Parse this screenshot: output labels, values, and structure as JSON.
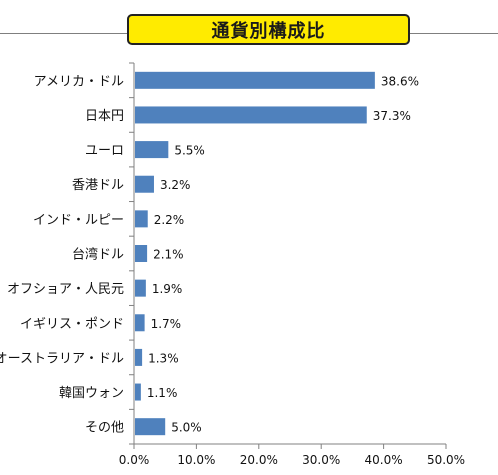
{
  "chart_data": {
    "type": "bar",
    "orientation": "horizontal",
    "title": "通貨別構成比",
    "categories": [
      "アメリカ・ドル",
      "日本円",
      "ユーロ",
      "香港ドル",
      "インド・ルピー",
      "台湾ドル",
      "オフショア・人民元",
      "イギリス・ポンド",
      "オーストラリア・ドル",
      "韓国ウォン",
      "その他"
    ],
    "values": [
      38.6,
      37.3,
      5.5,
      3.2,
      2.2,
      2.1,
      1.9,
      1.7,
      1.3,
      1.1,
      5.0
    ],
    "value_labels": [
      "38.6%",
      "37.3%",
      "5.5%",
      "3.2%",
      "2.2%",
      "2.1%",
      "1.9%",
      "1.7%",
      "1.3%",
      "1.1%",
      "5.0%"
    ],
    "xticks": [
      "0.0%",
      "10.0%",
      "20.0%",
      "30.0%",
      "40.0%",
      "50.0%"
    ],
    "xlim": [
      0,
      50
    ],
    "xlabel": "",
    "ylabel": "",
    "grid": false,
    "bar_color": "#4f81bd"
  },
  "colors": {
    "title_background": "#ffeb00",
    "bar": "#4f81bd"
  }
}
